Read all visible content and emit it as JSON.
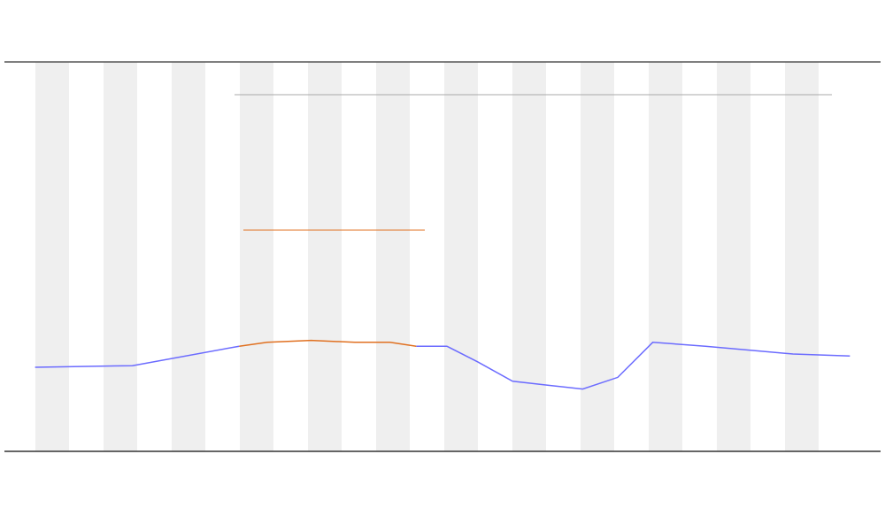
{
  "chart_data": {
    "type": "line",
    "x": [
      3.5,
      14.6,
      26.8,
      30,
      35,
      40,
      44,
      47,
      50.5,
      54,
      58,
      62,
      66,
      70,
      74,
      80,
      85,
      90,
      96.5
    ],
    "xlim": [
      0,
      100
    ],
    "ylim": [
      0,
      100
    ],
    "series": [
      {
        "color": "#6b6bff",
        "values": [
          21.6,
          22,
          27,
          null,
          null,
          null,
          null,
          27,
          27,
          23,
          18,
          17,
          16,
          19,
          28,
          27,
          26,
          25,
          24.5
        ]
      },
      {
        "color": "#e07020",
        "values": [
          null,
          null,
          27,
          28,
          28.5,
          28,
          28,
          27,
          null,
          null,
          null,
          null,
          null,
          null,
          null,
          null,
          null,
          null,
          null
        ]
      }
    ]
  }
}
